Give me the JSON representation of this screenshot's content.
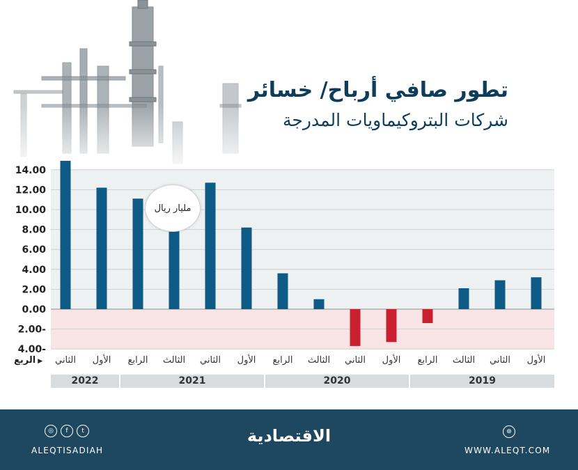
{
  "title": "تطور صافي أرباح/ خسائر",
  "subtitle": "شركات البتروكيماويات المدرجة",
  "unit": "مليار ريال",
  "quarter_axis_label": "الربع",
  "colors": {
    "positive": "#0e5a87",
    "negative": "#c8202f",
    "loss_band": "#f8e4e4",
    "plot_bg": "#eef1f2",
    "footer": "#1e4860"
  },
  "chart_data": {
    "type": "bar",
    "categories": [
      "الأول",
      "الثاني",
      "الثالث",
      "الرابع",
      "الأول",
      "الثاني",
      "الثالث",
      "الرابع",
      "الأول",
      "الثاني",
      "الثالث",
      "الرابع",
      "الأول",
      "الثاني"
    ],
    "years": [
      {
        "label": "2019",
        "count": 4
      },
      {
        "label": "2020",
        "count": 4
      },
      {
        "label": "2021",
        "count": 4
      },
      {
        "label": "2022",
        "count": 2
      }
    ],
    "values": [
      3.2,
      2.9,
      2.1,
      -1.4,
      -3.3,
      -3.7,
      1.0,
      3.6,
      8.2,
      12.7,
      9.8,
      11.1,
      12.2,
      14.9
    ],
    "yticks": [
      14,
      12,
      10,
      8,
      6,
      4,
      2,
      0,
      -2,
      -4
    ],
    "ytick_labels": [
      "14.00",
      "12.00",
      "10.00",
      "8.00",
      "6.00",
      "4.00",
      "2.00",
      "0.00",
      "2.00-",
      "4.00-"
    ],
    "ylim": [
      -4,
      14
    ],
    "direction": "right-to-left",
    "grid": true
  },
  "footer": {
    "handle": "ALEQTISADIAH",
    "brand": "الاقتصادية",
    "website": "WWW.ALEQT.COM",
    "social_icons": [
      "instagram-icon",
      "facebook-icon",
      "twitter-icon"
    ],
    "social_glyphs": [
      "◎",
      "f",
      "t"
    ],
    "web_glyph": "⊛"
  }
}
